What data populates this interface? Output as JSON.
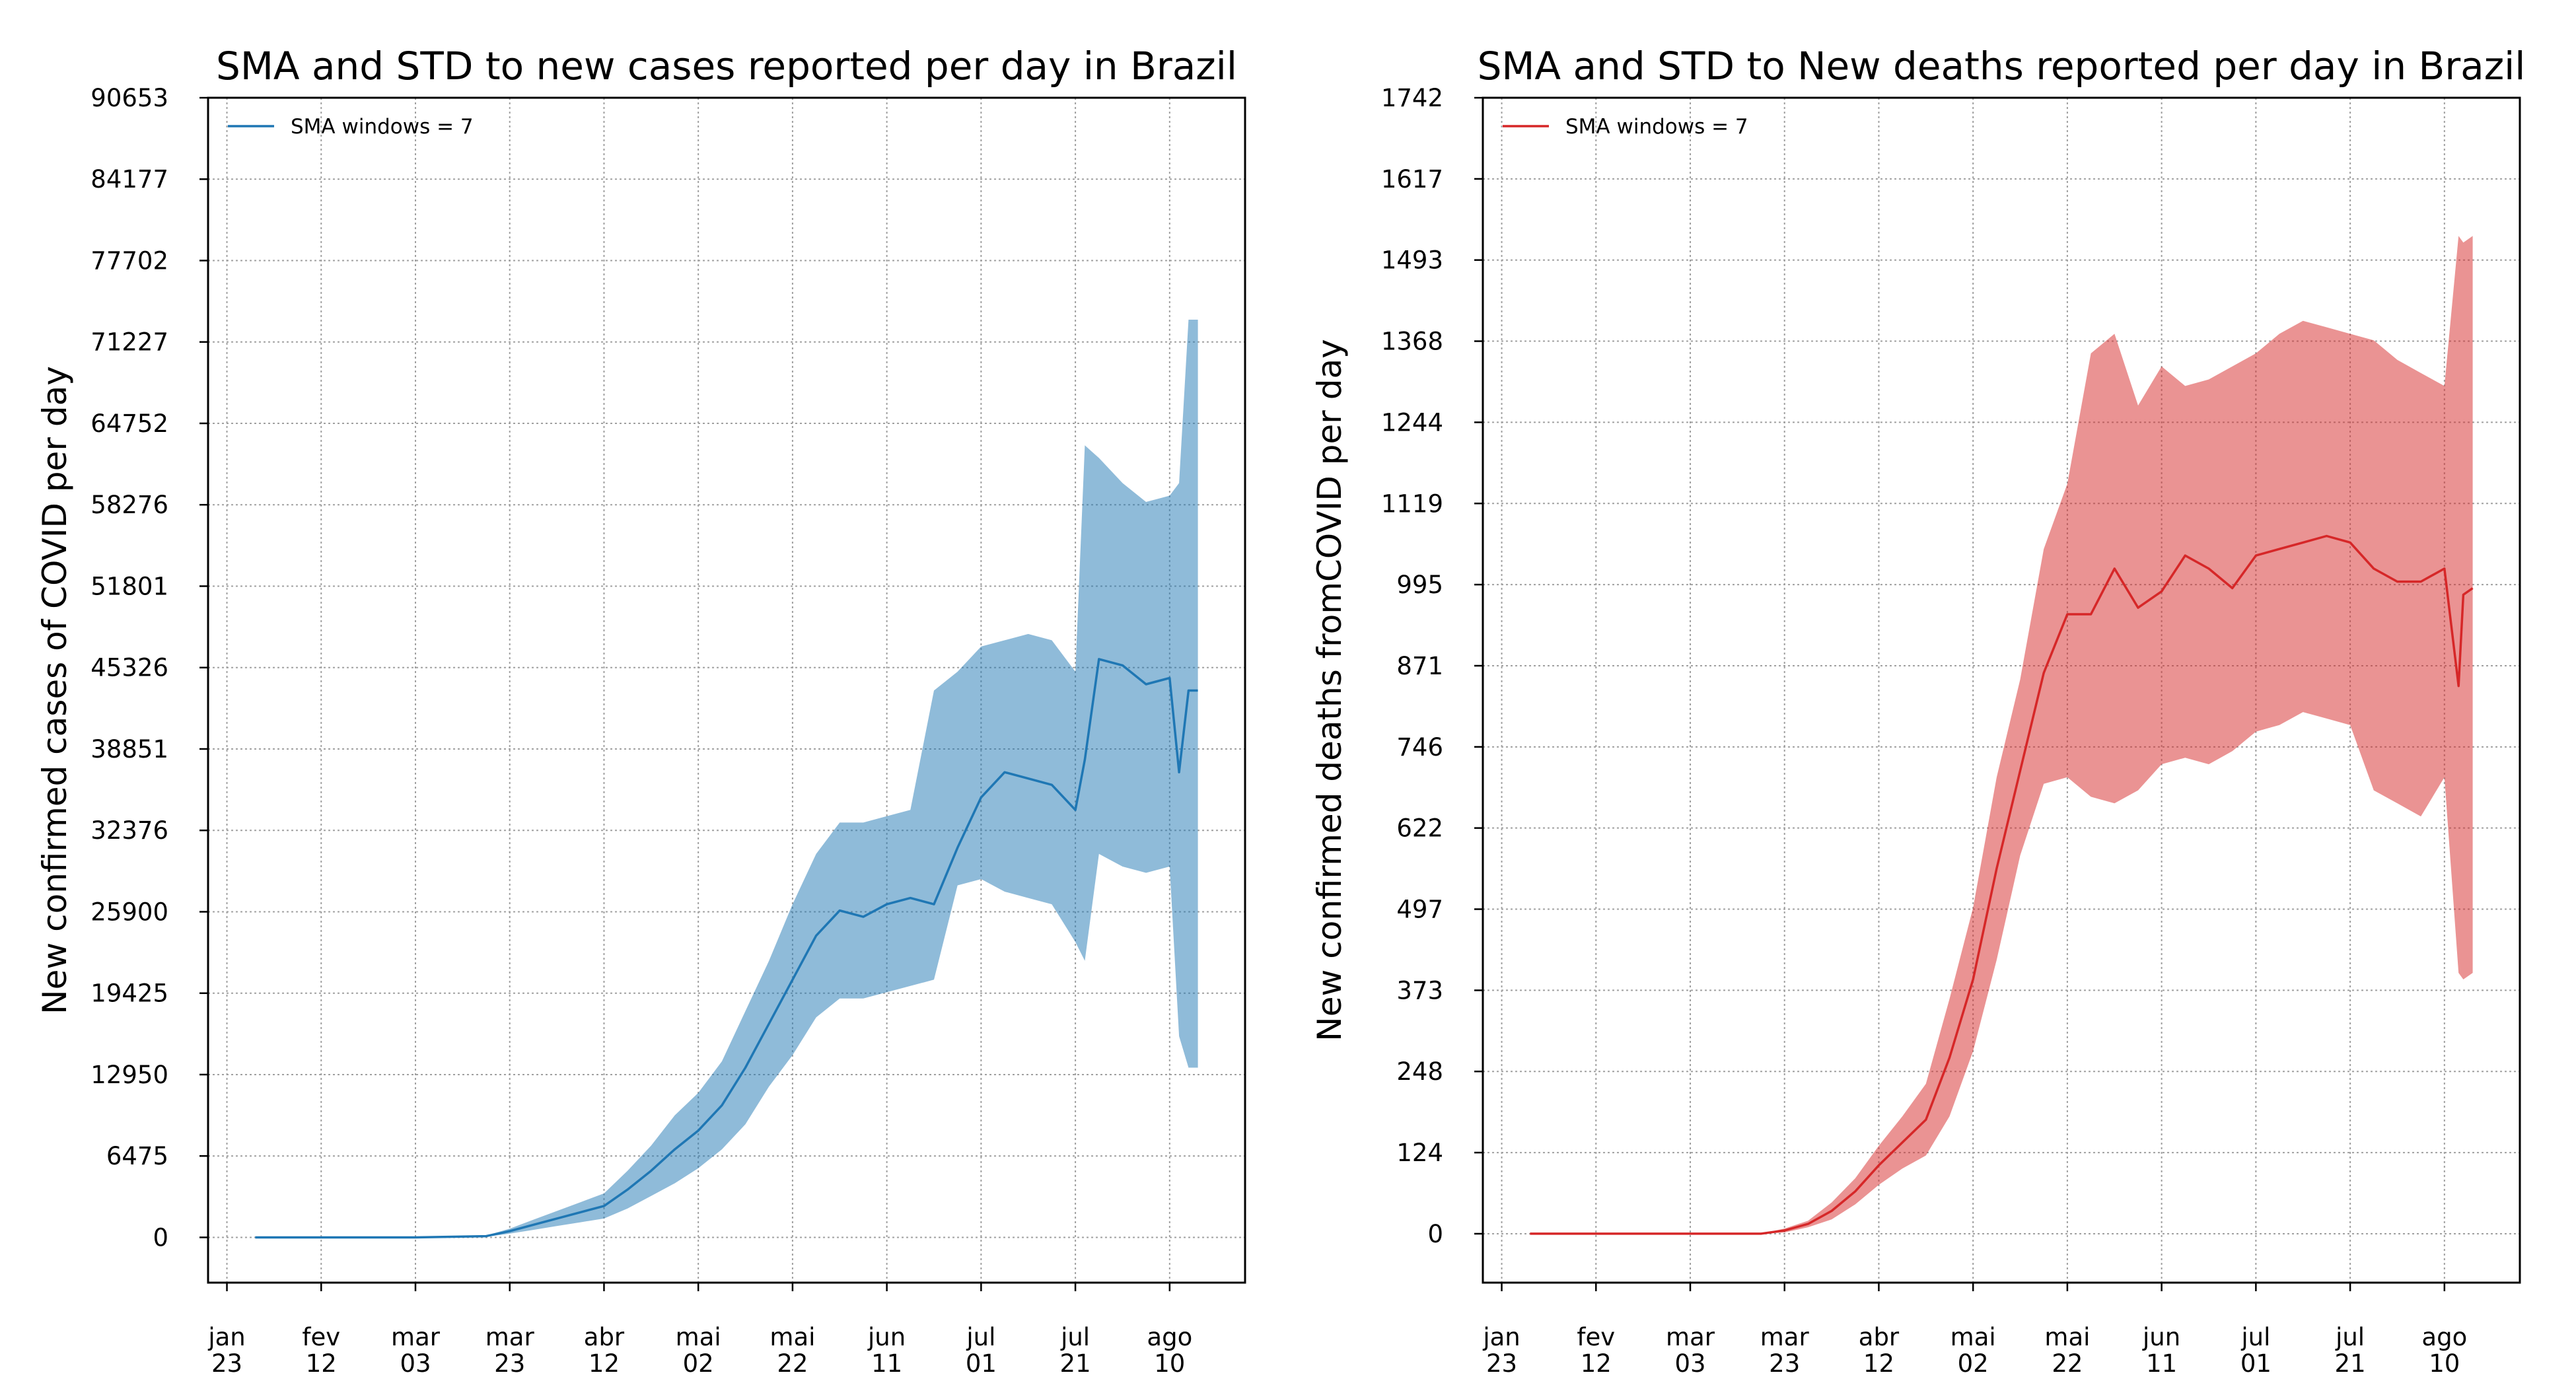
{
  "chart_data": [
    {
      "type": "line",
      "title": "SMA and STD to new cases reported per day in Brazil",
      "ylabel": "New confirmed cases of COVID per day",
      "xlabel": "",
      "x_tick_labels": [
        [
          "jan",
          "23"
        ],
        [
          "fev",
          "12"
        ],
        [
          "mar",
          "03"
        ],
        [
          "mar",
          "23"
        ],
        [
          "abr",
          "12"
        ],
        [
          "mai",
          "02"
        ],
        [
          "mai",
          "22"
        ],
        [
          "jun",
          "11"
        ],
        [
          "jul",
          "01"
        ],
        [
          "jul",
          "21"
        ],
        [
          "ago",
          "10"
        ]
      ],
      "x_tick_days": [
        0,
        20,
        40,
        60,
        80,
        100,
        120,
        140,
        160,
        180,
        200
      ],
      "xlim": [
        -4,
        216
      ],
      "y_ticks": [
        "0",
        "6475",
        "12950",
        "19425",
        "25900",
        "32376",
        "38851",
        "45326",
        "51801",
        "58276",
        "64752",
        "71227",
        "77702",
        "84177",
        "90653"
      ],
      "ylim": [
        -3600,
        90653
      ],
      "grid": true,
      "legend": {
        "position": "top-left",
        "label": "SMA windows = 7"
      },
      "colors": {
        "line": "#1f77b4",
        "band": "#1f77b4"
      },
      "series": [
        {
          "name": "SMA windows = 7",
          "x": [
            6,
            20,
            40,
            55,
            60,
            65,
            70,
            75,
            80,
            85,
            90,
            95,
            100,
            105,
            110,
            115,
            120,
            125,
            130,
            135,
            140,
            145,
            150,
            155,
            160,
            165,
            170,
            175,
            180,
            182,
            185,
            190,
            195,
            200,
            202,
            204,
            206
          ],
          "values": [
            0,
            0,
            0,
            100,
            500,
            1000,
            1500,
            2000,
            2500,
            3800,
            5300,
            7000,
            8500,
            10500,
            13500,
            17000,
            20500,
            24000,
            26000,
            25500,
            26500,
            27000,
            26500,
            31000,
            35000,
            37000,
            36500,
            36000,
            34000,
            38000,
            46000,
            45500,
            44000,
            44500,
            37000,
            43500,
            43500
          ],
          "std_lower": [
            0,
            0,
            0,
            50,
            300,
            600,
            900,
            1200,
            1500,
            2300,
            3300,
            4300,
            5500,
            7000,
            9000,
            12000,
            14500,
            17500,
            19000,
            19000,
            19500,
            20000,
            20500,
            28000,
            28500,
            27500,
            27000,
            26500,
            23500,
            22000,
            30500,
            29500,
            29000,
            29500,
            16000,
            13500,
            13500
          ],
          "std_upper": [
            0,
            0,
            0,
            150,
            700,
            1400,
            2100,
            2800,
            3500,
            5300,
            7300,
            9700,
            11500,
            14000,
            18000,
            22000,
            26500,
            30500,
            33000,
            33000,
            33500,
            34000,
            43500,
            45000,
            47000,
            47500,
            48000,
            47500,
            45000,
            63000,
            62000,
            60000,
            58500,
            59000,
            60000,
            73000,
            73000
          ]
        }
      ]
    },
    {
      "type": "line",
      "title": "SMA and STD to New deaths reported per day in Brazil",
      "ylabel": "New confirmed deaths fromCOVID per day",
      "xlabel": "",
      "x_tick_labels": [
        [
          "jan",
          "23"
        ],
        [
          "fev",
          "12"
        ],
        [
          "mar",
          "03"
        ],
        [
          "mar",
          "23"
        ],
        [
          "abr",
          "12"
        ],
        [
          "mai",
          "02"
        ],
        [
          "mai",
          "22"
        ],
        [
          "jun",
          "11"
        ],
        [
          "jul",
          "01"
        ],
        [
          "jul",
          "21"
        ],
        [
          "ago",
          "10"
        ]
      ],
      "x_tick_days": [
        0,
        20,
        40,
        60,
        80,
        100,
        120,
        140,
        160,
        180,
        200
      ],
      "xlim": [
        -4,
        216
      ],
      "y_ticks": [
        "0",
        "124",
        "248",
        "373",
        "497",
        "622",
        "746",
        "871",
        "995",
        "1119",
        "1244",
        "1368",
        "1493",
        "1617",
        "1742"
      ],
      "ylim": [
        -75,
        1742
      ],
      "grid": true,
      "legend": {
        "position": "top-left",
        "label": "SMA windows = 7"
      },
      "colors": {
        "line": "#d62728",
        "band": "#d62728"
      },
      "series": [
        {
          "name": "SMA windows = 7",
          "x": [
            6,
            20,
            40,
            55,
            60,
            65,
            70,
            75,
            80,
            85,
            90,
            95,
            100,
            105,
            110,
            115,
            120,
            125,
            130,
            135,
            140,
            145,
            150,
            155,
            160,
            165,
            170,
            175,
            180,
            185,
            190,
            195,
            200,
            203,
            204,
            206
          ],
          "values": [
            0,
            0,
            0,
            0,
            5,
            15,
            35,
            65,
            105,
            140,
            175,
            270,
            390,
            560,
            710,
            860,
            950,
            950,
            1020,
            960,
            985,
            1040,
            1020,
            990,
            1040,
            1050,
            1060,
            1070,
            1060,
            1020,
            1000,
            1000,
            1020,
            840,
            980,
            990
          ],
          "std_lower": [
            0,
            0,
            0,
            0,
            2,
            10,
            22,
            45,
            75,
            100,
            120,
            180,
            280,
            420,
            580,
            690,
            700,
            670,
            660,
            680,
            720,
            730,
            720,
            740,
            770,
            780,
            800,
            790,
            780,
            680,
            660,
            640,
            700,
            400,
            390,
            400
          ],
          "std_upper": [
            0,
            0,
            0,
            0,
            8,
            20,
            48,
            85,
            135,
            180,
            230,
            360,
            500,
            700,
            850,
            1050,
            1150,
            1350,
            1380,
            1270,
            1330,
            1300,
            1310,
            1330,
            1350,
            1380,
            1400,
            1390,
            1380,
            1370,
            1340,
            1320,
            1300,
            1530,
            1520,
            1530
          ]
        }
      ]
    }
  ]
}
